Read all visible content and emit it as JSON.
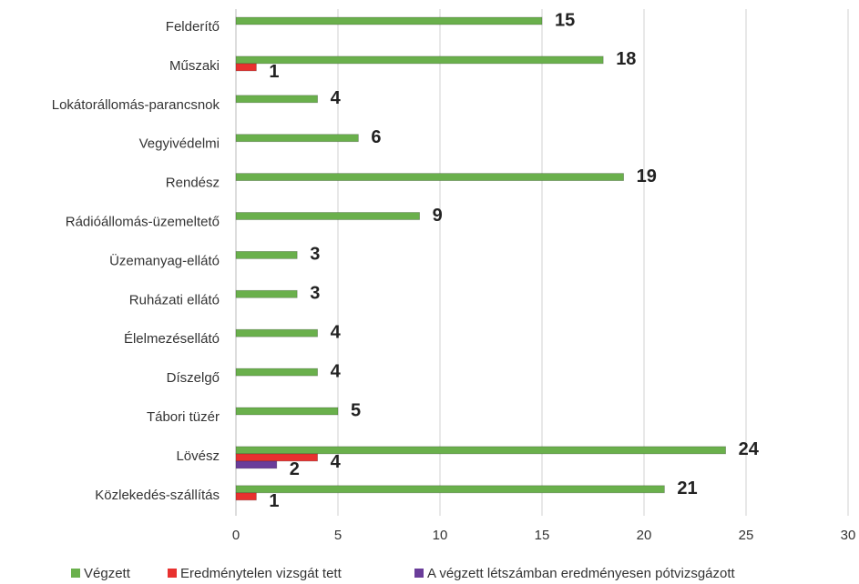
{
  "chart_data": {
    "type": "bar",
    "orientation": "horizontal",
    "categories": [
      "Felderítő",
      "Műszaki",
      "Lokátorállomás-parancsnok",
      "Vegyivédelmi",
      "Rendész",
      "Rádióállomás-üzemeltető",
      "Üzemanyag-ellátó",
      "Ruházati ellátó",
      "Élelmezésellátó",
      "Díszelgő",
      "Tábori tüzér",
      "Lövész",
      "Közlekedés-szállítás"
    ],
    "series": [
      {
        "name": "Végzett",
        "color": "#6ab04c",
        "values": [
          15,
          18,
          4,
          6,
          19,
          9,
          3,
          3,
          4,
          4,
          5,
          24,
          21
        ]
      },
      {
        "name": "Eredménytelen vizsgát tett",
        "color": "#e8312f",
        "values": [
          null,
          1,
          null,
          null,
          null,
          null,
          null,
          null,
          null,
          null,
          null,
          4,
          1
        ]
      },
      {
        "name": "A végzett létszámban eredményesen pótvizsgázott",
        "color": "#6a3d9a",
        "values": [
          null,
          null,
          null,
          null,
          null,
          null,
          null,
          null,
          null,
          null,
          null,
          2,
          null
        ]
      }
    ],
    "xlim": [
      0,
      30
    ],
    "xticks": [
      0,
      5,
      10,
      15,
      20,
      25,
      30
    ],
    "grid": true,
    "legend": "bottom"
  }
}
